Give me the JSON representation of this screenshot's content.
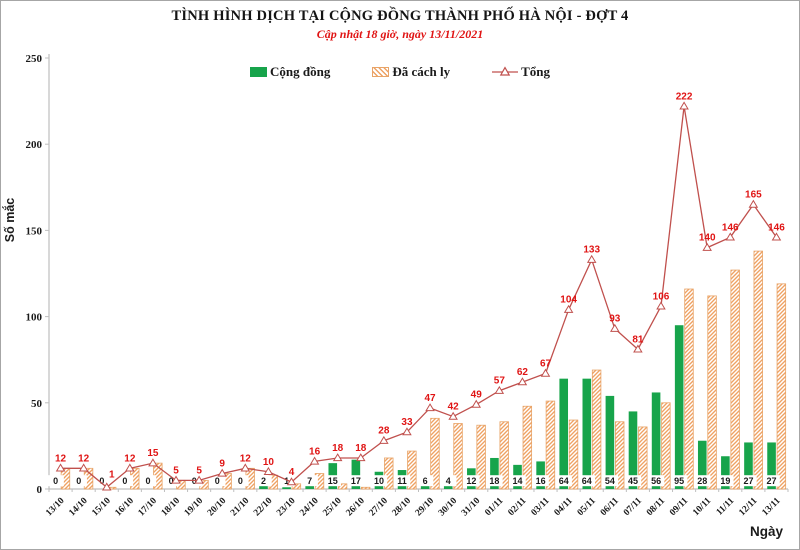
{
  "header": {
    "title": "TÌNH HÌNH DỊCH TẠI CỘNG ĐỒNG THÀNH PHỐ HÀ NỘI - ĐỢT 4",
    "subtitle": "Cập nhật 18 giờ, ngày 13/11/2021"
  },
  "colors": {
    "community_green": "#17a44b",
    "quarantine_stripe": "#efa263",
    "total_line": "#c0504d",
    "value_label_red": "#e01414",
    "axis_gray": "#bfbfbf",
    "text_dark": "#1a1a1a"
  },
  "chart_data": {
    "type": "bar",
    "title": "TÌNH HÌNH DỊCH TẠI CỘNG ĐỒNG THÀNH PHỐ HÀ NỘI - ĐỢT 4",
    "subtitle": "Cập nhật 18 giờ, ngày 13/11/2021",
    "xlabel": "Ngày",
    "ylabel": "Số mắc",
    "ylim": [
      0,
      250
    ],
    "yticks": [
      0,
      50,
      100,
      150,
      200,
      250
    ],
    "grid": false,
    "legend_position": "top",
    "categories": [
      "13/10",
      "14/10",
      "15/10",
      "16/10",
      "17/10",
      "18/10",
      "19/10",
      "20/10",
      "21/10",
      "22/10",
      "23/10",
      "24/10",
      "25/10",
      "26/10",
      "27/10",
      "28/10",
      "29/10",
      "30/10",
      "31/10",
      "01/11",
      "02/11",
      "03/11",
      "04/11",
      "05/11",
      "06/11",
      "07/11",
      "08/11",
      "09/11",
      "10/11",
      "11/11",
      "12/11",
      "13/11"
    ],
    "series": [
      {
        "name": "Cộng đồng",
        "type": "bar",
        "labeled": true,
        "values": [
          0,
          0,
          0,
          0,
          0,
          0,
          0,
          0,
          0,
          2,
          1,
          7,
          15,
          17,
          10,
          11,
          6,
          4,
          12,
          18,
          14,
          16,
          64,
          64,
          54,
          45,
          56,
          95,
          28,
          19,
          27,
          27
        ]
      },
      {
        "name": "Đã cách ly",
        "type": "bar",
        "labeled": false,
        "values": [
          12,
          12,
          1,
          12,
          15,
          5,
          5,
          9,
          12,
          8,
          3,
          9,
          3,
          1,
          18,
          22,
          41,
          38,
          37,
          39,
          48,
          51,
          40,
          69,
          39,
          36,
          50,
          116,
          112,
          127,
          138,
          119
        ]
      },
      {
        "name": "Tổng",
        "type": "line",
        "labeled": true,
        "values": [
          12,
          12,
          1,
          12,
          15,
          5,
          5,
          9,
          12,
          10,
          4,
          16,
          18,
          18,
          28,
          33,
          47,
          42,
          49,
          57,
          62,
          67,
          104,
          133,
          93,
          81,
          106,
          222,
          140,
          146,
          165,
          146
        ]
      }
    ]
  }
}
